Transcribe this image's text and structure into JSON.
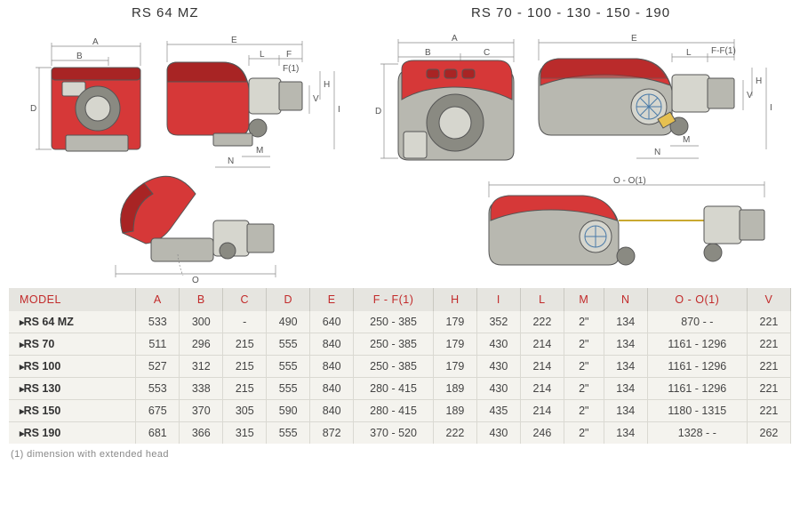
{
  "headings": {
    "left": "RS 64 MZ",
    "right": "RS 70 - 100 - 130 - 150 - 190"
  },
  "diagrams": {
    "dim_labels": [
      "A",
      "B",
      "C",
      "D",
      "E",
      "L",
      "F",
      "F(1)",
      "H",
      "I",
      "V",
      "M",
      "N",
      "O",
      "O - O(1)",
      "F-F(1)"
    ]
  },
  "table": {
    "columns": [
      "MODEL",
      "A",
      "B",
      "C",
      "D",
      "E",
      "F - F(1)",
      "H",
      "I",
      "L",
      "M",
      "N",
      "O - O(1)",
      "V"
    ],
    "rows": [
      [
        "RS 64 MZ",
        "533",
        "300",
        "-",
        "490",
        "640",
        "250 - 385",
        "179",
        "352",
        "222",
        "2\"",
        "134",
        "870  -   -",
        "221"
      ],
      [
        "RS 70",
        "511",
        "296",
        "215",
        "555",
        "840",
        "250 - 385",
        "179",
        "430",
        "214",
        "2\"",
        "134",
        "1161  - 1296",
        "221"
      ],
      [
        "RS 100",
        "527",
        "312",
        "215",
        "555",
        "840",
        "250 - 385",
        "179",
        "430",
        "214",
        "2\"",
        "134",
        "1161  - 1296",
        "221"
      ],
      [
        "RS 130",
        "553",
        "338",
        "215",
        "555",
        "840",
        "280 - 415",
        "189",
        "430",
        "214",
        "2\"",
        "134",
        "1161  - 1296",
        "221"
      ],
      [
        "RS 150",
        "675",
        "370",
        "305",
        "590",
        "840",
        "280 - 415",
        "189",
        "435",
        "214",
        "2\"",
        "134",
        "1180  - 1315",
        "221"
      ],
      [
        "RS 190",
        "681",
        "366",
        "315",
        "555",
        "872",
        "370 - 520",
        "222",
        "430",
        "246",
        "2\"",
        "134",
        "1328  -   -",
        "262"
      ]
    ],
    "col_widths": [
      "140",
      "48",
      "48",
      "48",
      "48",
      "48",
      "88",
      "48",
      "48",
      "48",
      "44",
      "48",
      "110",
      "48"
    ]
  },
  "footnote": "(1) dimension with extended head",
  "colors": {
    "header_bg": "#e6e5e0",
    "header_text": "#c22a2a",
    "row_bg": "#f4f3ee",
    "border": "#dad9d2",
    "burner_red": "#d63838",
    "burner_red_dark": "#a82424",
    "burner_grey": "#b8b8b0"
  }
}
